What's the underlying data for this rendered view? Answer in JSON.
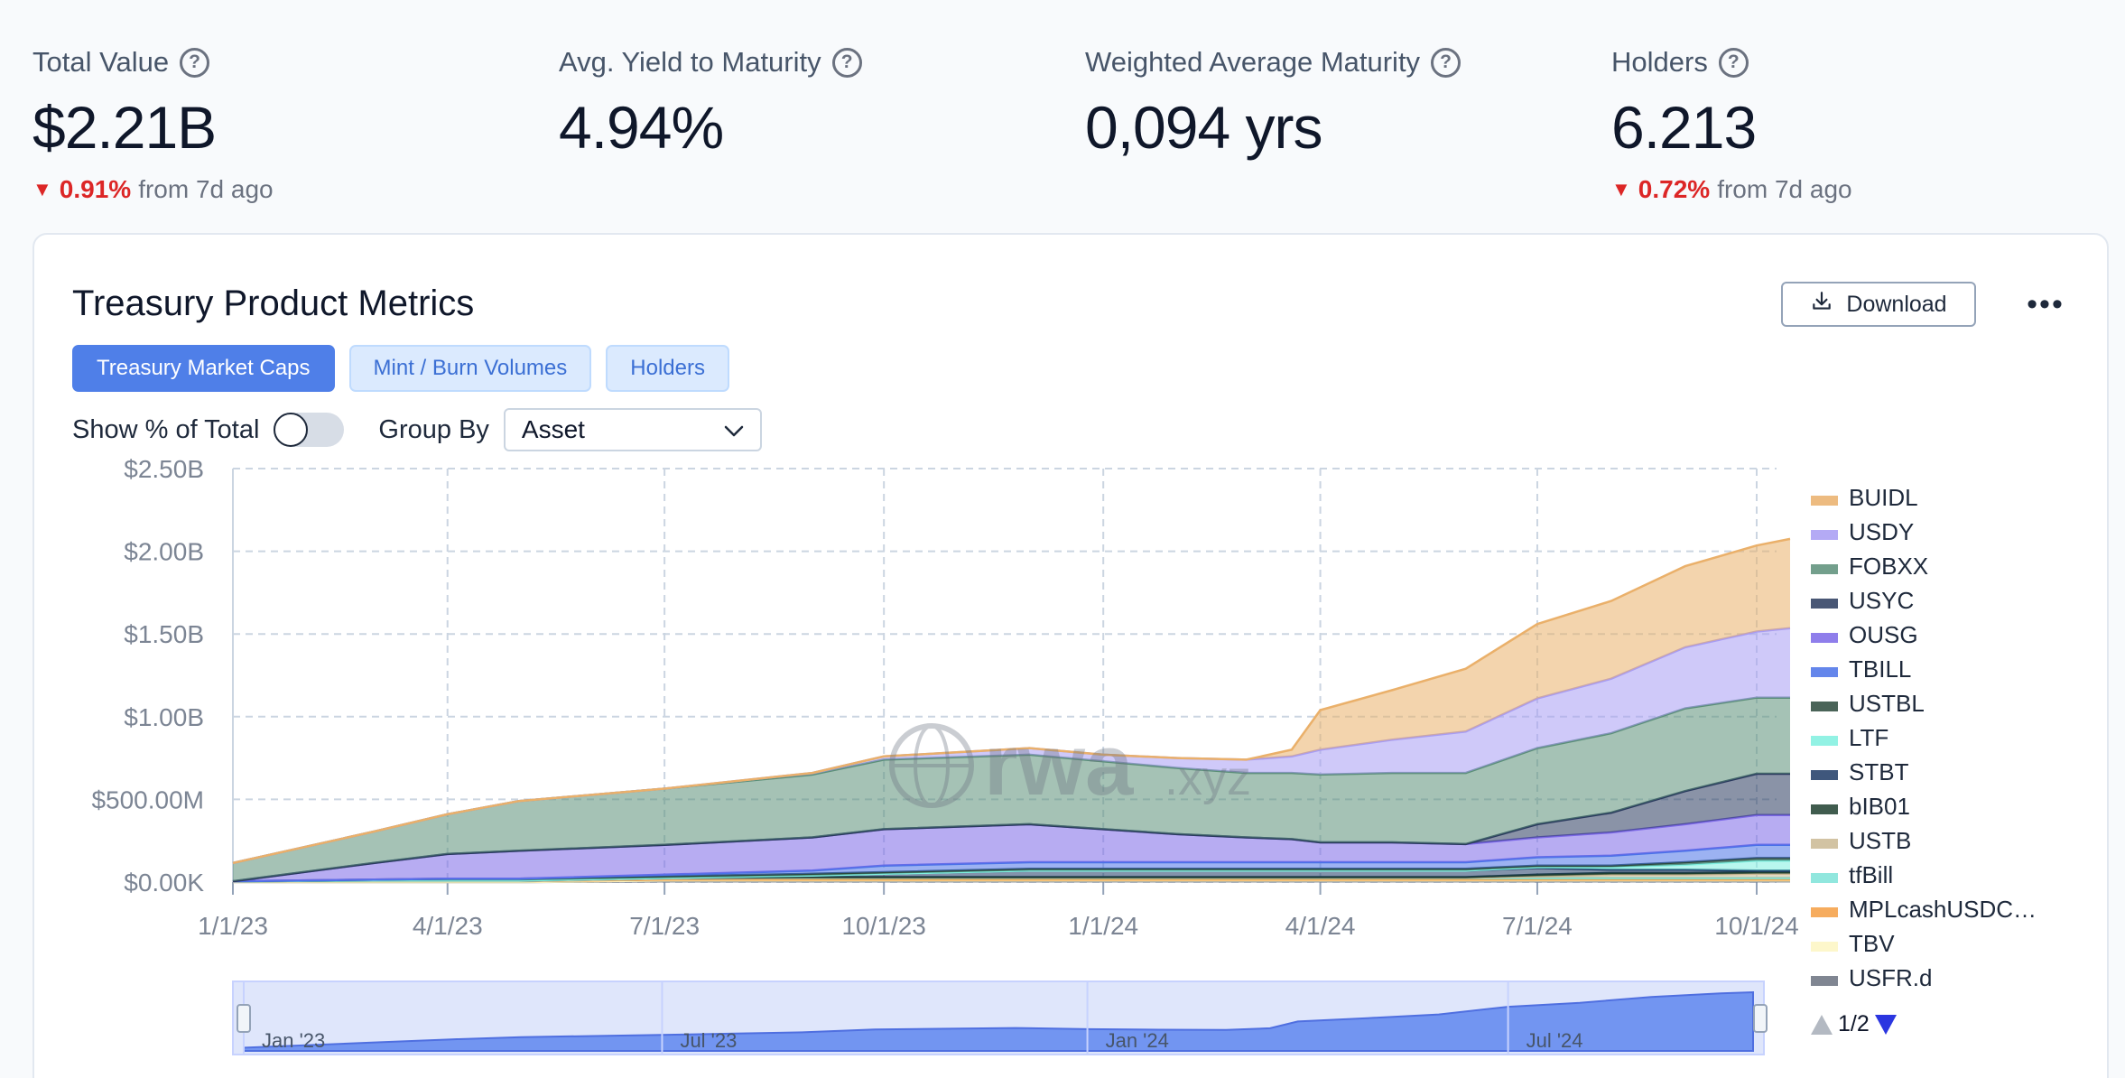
{
  "stats": [
    {
      "label": "Total Value",
      "value": "$2.21B",
      "change_pct": "0.91%",
      "change_text": "from 7d ago"
    },
    {
      "label": "Avg. Yield to Maturity",
      "value": "4.94%"
    },
    {
      "label": "Weighted Average Maturity",
      "value": "0,094 yrs"
    },
    {
      "label": "Holders",
      "value": "6.213",
      "change_pct": "0.72%",
      "change_text": "from 7d ago"
    }
  ],
  "card": {
    "title": "Treasury Product Metrics",
    "download_label": "Download",
    "tabs": [
      {
        "label": "Treasury Market Caps",
        "active": true
      },
      {
        "label": "Mint / Burn Volumes",
        "active": false
      },
      {
        "label": "Holders",
        "active": false
      }
    ],
    "show_pct_label": "Show % of Total",
    "group_by_label": "Group By",
    "group_by_value": "Asset"
  },
  "legend_pager": "1/2",
  "watermark": {
    "main": "rwa",
    "suffix": ".xyz"
  },
  "navigator_labels": [
    "Jan '23",
    "Jul '23",
    "Jan '24",
    "Jul '24"
  ],
  "chart_data": {
    "type": "area",
    "stacked": true,
    "grid": true,
    "legend_position": "right",
    "y_ticks": [
      "$0.00K",
      "$500.00M",
      "$1.00B",
      "$1.50B",
      "$2.00B",
      "$2.50B"
    ],
    "x_ticks": [
      "1/1/23",
      "4/1/23",
      "7/1/23",
      "10/1/23",
      "1/1/24",
      "4/1/24",
      "7/1/24",
      "10/1/24"
    ],
    "ylim": [
      0,
      2500
    ],
    "y_unit": "$M",
    "x": [
      "2023-01-01",
      "2023-03-01",
      "2023-04-01",
      "2023-05-01",
      "2023-07-01",
      "2023-09-01",
      "2023-10-01",
      "2023-12-01",
      "2024-01-01",
      "2024-02-01",
      "2024-03-01",
      "2024-03-20",
      "2024-04-01",
      "2024-05-01",
      "2024-06-01",
      "2024-07-01",
      "2024-08-01",
      "2024-09-01",
      "2024-10-01",
      "2024-10-15"
    ],
    "series": [
      {
        "name": "USFR.d",
        "color": "#6b7280",
        "values": [
          0,
          0,
          0,
          0,
          5,
          5,
          5,
          5,
          5,
          5,
          5,
          5,
          5,
          5,
          5,
          5,
          5,
          5,
          5,
          5
        ]
      },
      {
        "name": "TBV",
        "color": "#fdf6c3",
        "values": [
          0,
          0,
          0,
          0,
          5,
          5,
          5,
          5,
          5,
          5,
          5,
          5,
          5,
          5,
          5,
          5,
          5,
          5,
          5,
          5
        ]
      },
      {
        "name": "MPLcashUSDC…",
        "color": "#f59e42",
        "values": [
          5,
          5,
          5,
          5,
          5,
          5,
          5,
          5,
          5,
          5,
          5,
          5,
          5,
          5,
          5,
          5,
          5,
          5,
          5,
          5
        ]
      },
      {
        "name": "tfBill",
        "color": "#7ee3d9",
        "values": [
          0,
          0,
          0,
          0,
          5,
          10,
          10,
          10,
          10,
          10,
          10,
          10,
          10,
          10,
          10,
          10,
          10,
          10,
          10,
          10
        ]
      },
      {
        "name": "USTB",
        "color": "#cbb994",
        "values": [
          0,
          0,
          0,
          0,
          0,
          0,
          0,
          0,
          0,
          0,
          0,
          0,
          0,
          0,
          0,
          10,
          20,
          20,
          25,
          25
        ]
      },
      {
        "name": "bIB01",
        "color": "#1f4030",
        "values": [
          0,
          5,
          5,
          5,
          5,
          5,
          5,
          5,
          5,
          5,
          5,
          5,
          5,
          5,
          5,
          10,
          10,
          10,
          10,
          10
        ]
      },
      {
        "name": "STBT",
        "color": "#1e3a66",
        "values": [
          0,
          0,
          0,
          0,
          0,
          10,
          20,
          40,
          40,
          40,
          40,
          40,
          40,
          40,
          40,
          40,
          20,
          20,
          10,
          10
        ]
      },
      {
        "name": "LTF",
        "color": "#7ff0e0",
        "values": [
          0,
          0,
          0,
          0,
          0,
          0,
          0,
          0,
          0,
          0,
          0,
          0,
          0,
          0,
          0,
          5,
          15,
          30,
          60,
          60
        ]
      },
      {
        "name": "USTBL",
        "color": "#2b4a3c",
        "values": [
          0,
          5,
          10,
          10,
          10,
          10,
          10,
          10,
          10,
          10,
          10,
          10,
          10,
          10,
          10,
          10,
          10,
          15,
          15,
          15
        ]
      },
      {
        "name": "TBILL",
        "color": "#4a72e8",
        "values": [
          0,
          0,
          0,
          0,
          10,
          20,
          40,
          40,
          40,
          40,
          40,
          40,
          40,
          40,
          40,
          50,
          60,
          70,
          80,
          80
        ]
      },
      {
        "name": "OUSG",
        "color": "#7c68e8",
        "values": [
          0,
          100,
          150,
          170,
          180,
          200,
          220,
          230,
          200,
          170,
          150,
          140,
          120,
          120,
          110,
          120,
          140,
          160,
          180,
          180
        ]
      },
      {
        "name": "USYC",
        "color": "#2a3a5e",
        "values": [
          0,
          0,
          0,
          0,
          0,
          0,
          0,
          0,
          0,
          0,
          0,
          0,
          0,
          0,
          0,
          80,
          120,
          200,
          250,
          250
        ]
      },
      {
        "name": "FOBXX",
        "color": "#5b8f78",
        "values": [
          110,
          190,
          240,
          300,
          340,
          380,
          420,
          420,
          410,
          400,
          390,
          400,
          410,
          420,
          430,
          460,
          480,
          500,
          460,
          460
        ]
      },
      {
        "name": "USDY",
        "color": "#a79cf4",
        "values": [
          0,
          0,
          0,
          0,
          0,
          10,
          20,
          40,
          40,
          60,
          80,
          100,
          150,
          200,
          250,
          300,
          330,
          370,
          400,
          420
        ]
      },
      {
        "name": "BUIDL",
        "color": "#eab06a",
        "values": [
          0,
          0,
          0,
          0,
          0,
          0,
          0,
          0,
          0,
          0,
          0,
          40,
          240,
          300,
          380,
          450,
          470,
          490,
          520,
          540
        ]
      }
    ]
  }
}
